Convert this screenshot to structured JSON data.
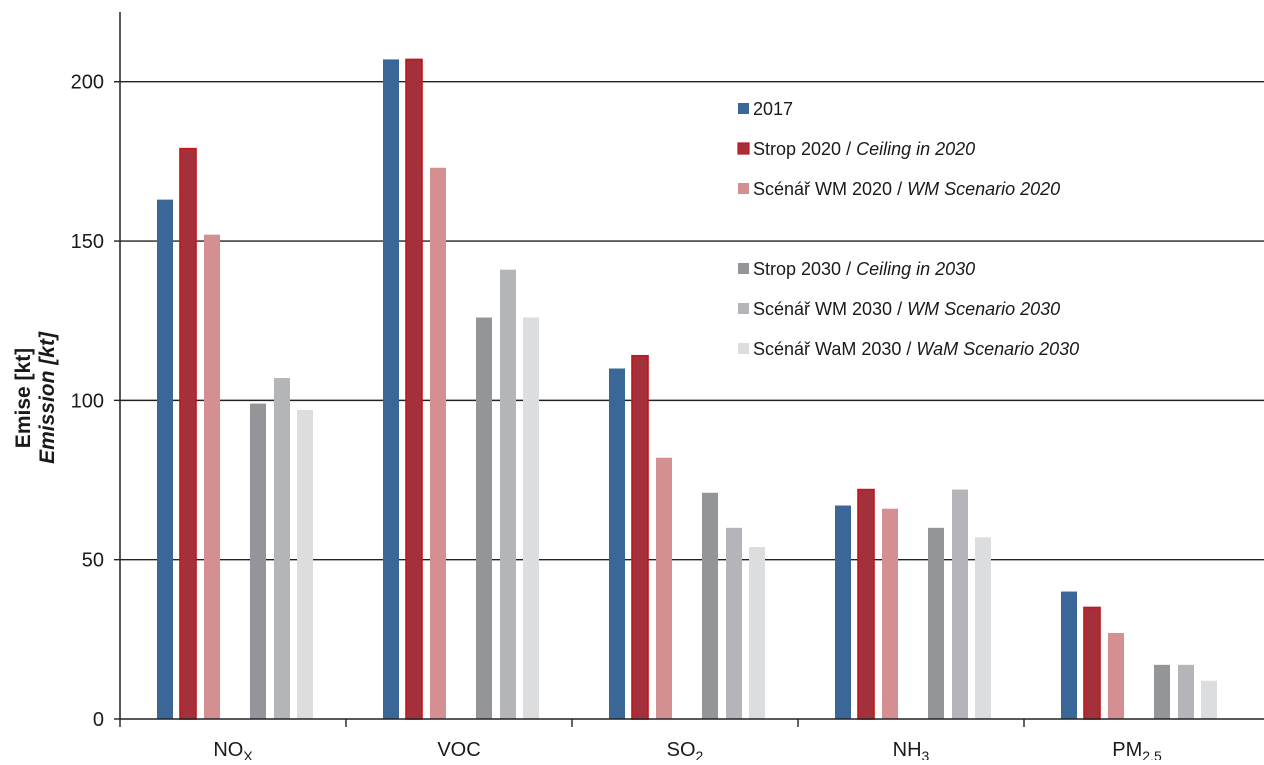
{
  "chart_data": {
    "type": "bar",
    "categories": [
      {
        "main": "NO",
        "sub": "X"
      },
      {
        "main": "VOC",
        "sub": ""
      },
      {
        "main": "SO",
        "sub": "2"
      },
      {
        "main": "NH",
        "sub": "3"
      },
      {
        "main": "PM",
        "sub": "2.5"
      }
    ],
    "ylabel": {
      "cz": "Emise [kt]",
      "en": "Emission [kt]"
    },
    "ylim": [
      0,
      220
    ],
    "yticks": [
      0,
      50,
      100,
      150,
      200
    ],
    "grid": true,
    "legend_position": "upper-right",
    "series": [
      {
        "name_cz": "2017",
        "name_en": "",
        "color": "#3b6698",
        "stroke": "#3b6698",
        "values": [
          163,
          207,
          110,
          67,
          40
        ]
      },
      {
        "name_cz": "Strop 2020",
        "name_en": "Ceiling in 2020",
        "color": "#a3303a",
        "stroke": "#c4161c",
        "values": [
          179,
          207,
          114,
          72,
          35
        ]
      },
      {
        "name_cz": "Scénář WM 2020",
        "name_en": "WM Scenario 2020",
        "color": "#d49090",
        "stroke": "#d49090",
        "values": [
          152,
          173,
          82,
          66,
          27
        ]
      },
      {
        "name_cz": "Strop 2030",
        "name_en": "Ceiling in 2030",
        "color": "#949599",
        "stroke": "#949599",
        "values": [
          99,
          126,
          71,
          60,
          17
        ]
      },
      {
        "name_cz": "Scénář WM 2030",
        "name_en": "WM Scenario 2030",
        "color": "#b4b5b8",
        "stroke": "#b4b5b8",
        "values": [
          107,
          141,
          60,
          72,
          17
        ]
      },
      {
        "name_cz": "Scénář WaM 2030",
        "name_en": "WaM Scenario 2030",
        "color": "#dcdddf",
        "stroke": "#dcdddf",
        "values": [
          97,
          126,
          54,
          57,
          12
        ]
      }
    ]
  }
}
